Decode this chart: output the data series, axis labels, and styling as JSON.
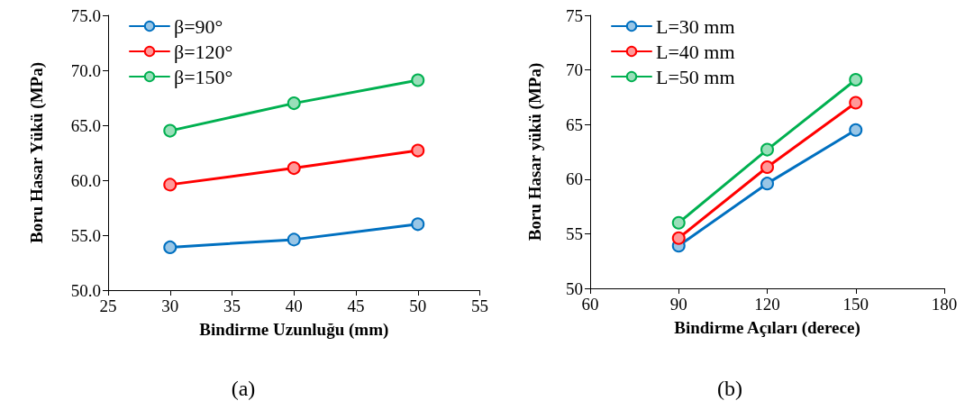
{
  "chart_data": [
    {
      "type": "line",
      "xlabel": "Bindirme Uzunluğu (mm)",
      "ylabel": "Boru Hasar Yükü (MPa)",
      "x": [
        30,
        40,
        50
      ],
      "series": [
        {
          "name": "β=90°",
          "color": "#0070c0",
          "values": [
            53.9,
            54.6,
            56.0
          ]
        },
        {
          "name": "β=120°",
          "color": "#ff0000",
          "values": [
            59.6,
            61.1,
            62.7
          ]
        },
        {
          "name": "β=150°",
          "color": "#00b050",
          "values": [
            64.5,
            67.0,
            69.1
          ]
        }
      ],
      "xlim": [
        25,
        55
      ],
      "xticks": [
        25,
        30,
        35,
        40,
        45,
        50,
        55
      ],
      "ylim": [
        50,
        75
      ],
      "yticks": [
        {
          "value": 50,
          "label": "50.0"
        },
        {
          "value": 55,
          "label": "55.0"
        },
        {
          "value": 60,
          "label": "60.0"
        },
        {
          "value": 65,
          "label": "65.0"
        },
        {
          "value": 70,
          "label": "70.0"
        },
        {
          "value": 75,
          "label": "75.0"
        }
      ],
      "grid": false,
      "legend": "top left",
      "marker": "circle",
      "line_style": "solid",
      "annotations": [
        "(a)"
      ]
    },
    {
      "type": "line",
      "xlabel": "Bindirme Açıları (derece)",
      "ylabel": "Boru Hasar yükü (MPa)",
      "x": [
        90,
        120,
        150
      ],
      "series": [
        {
          "name": "L=30 mm",
          "color": "#0070c0",
          "values": [
            53.9,
            59.6,
            64.5
          ]
        },
        {
          "name": "L=40 mm",
          "color": "#ff0000",
          "values": [
            54.6,
            61.1,
            67.0
          ]
        },
        {
          "name": "L=50 mm",
          "color": "#00b050",
          "values": [
            56.0,
            62.7,
            69.1
          ]
        }
      ],
      "xlim": [
        60,
        180
      ],
      "xticks": [
        60,
        90,
        120,
        150,
        180
      ],
      "ylim": [
        50,
        75
      ],
      "yticks": [
        50,
        55,
        60,
        65,
        70,
        75
      ],
      "grid": false,
      "legend": "top left",
      "marker": "circle",
      "line_style": "solid",
      "annotations": [
        "(b)"
      ]
    }
  ]
}
